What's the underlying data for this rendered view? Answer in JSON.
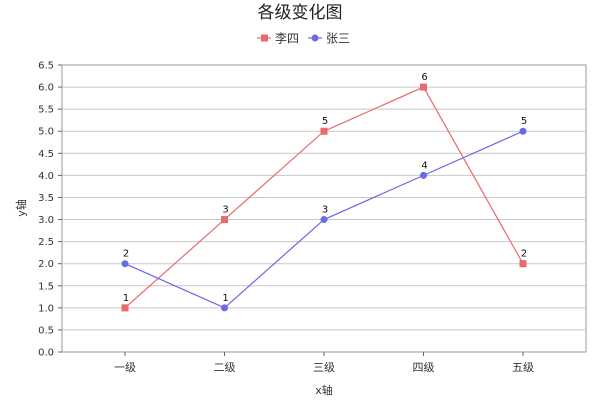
{
  "chart_data": {
    "type": "line",
    "title": "各级变化图",
    "xlabel": "x轴",
    "ylabel": "y轴",
    "categories": [
      "一级",
      "二级",
      "三级",
      "四级",
      "五级"
    ],
    "ylim": [
      0,
      6.5
    ],
    "y_ticks": [
      "0.0",
      "0.5",
      "1.0",
      "1.5",
      "2.0",
      "2.5",
      "3.0",
      "3.5",
      "4.0",
      "4.5",
      "5.0",
      "5.5",
      "6.0",
      "6.5"
    ],
    "grid": true,
    "legend_position": "top-center",
    "series": [
      {
        "name": "李四",
        "values": [
          1,
          3,
          5,
          6,
          2
        ],
        "labels": [
          "1",
          "3",
          "5",
          "6",
          "2"
        ],
        "color": "#e86a6a",
        "marker": "square"
      },
      {
        "name": "张三",
        "values": [
          2,
          1,
          3,
          4,
          5
        ],
        "labels": [
          "2",
          "1",
          "3",
          "4",
          "5"
        ],
        "color": "#6a6ae8",
        "marker": "circle"
      }
    ]
  }
}
